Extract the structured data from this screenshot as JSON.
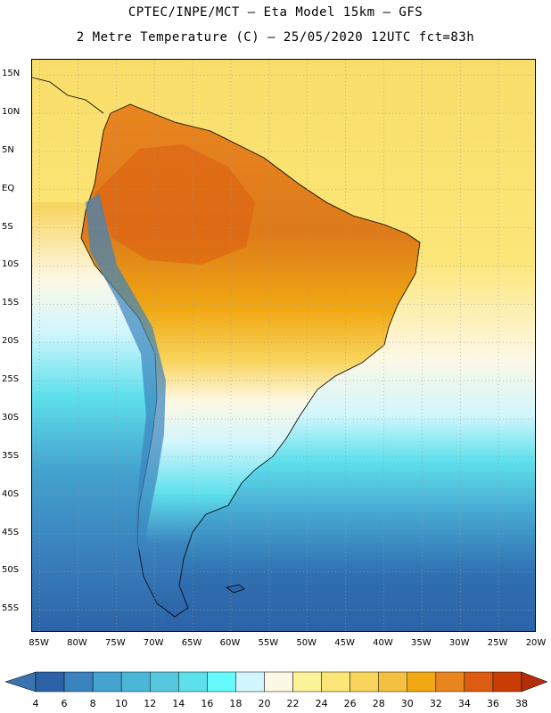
{
  "title": {
    "line1": "CPTEC/INPE/MCT –  Eta Model 15km – GFS",
    "line2": "2 Metre Temperature (C) – 25/05/2020 12UTC fct=83h"
  },
  "map": {
    "variable": "2 Metre Temperature",
    "units": "C",
    "lat_range": [
      "58S",
      "17N"
    ],
    "lon_range": [
      "86W",
      "20W"
    ],
    "lat_labels": [
      "15N",
      "10N",
      "5N",
      "EQ",
      "5S",
      "10S",
      "15S",
      "20S",
      "25S",
      "30S",
      "35S",
      "40S",
      "45S",
      "50S",
      "55S"
    ],
    "lon_labels": [
      "85W",
      "80W",
      "75W",
      "70W",
      "65W",
      "60W",
      "55W",
      "50W",
      "45W",
      "40W",
      "35W",
      "30W",
      "25W",
      "20W"
    ]
  },
  "colorbar": {
    "labels": [
      "4",
      "6",
      "8",
      "10",
      "12",
      "14",
      "16",
      "18",
      "20",
      "22",
      "24",
      "26",
      "28",
      "30",
      "32",
      "34",
      "36",
      "38"
    ],
    "colors": [
      "#3a72b0",
      "#2c63a8",
      "#3a83be",
      "#44a3cf",
      "#4ab7d9",
      "#55c8e0",
      "#5ee0ec",
      "#66fafd",
      "#d2f6fd",
      "#fdf8e5",
      "#fcf29a",
      "#fce678",
      "#f8d45c",
      "#f3c040",
      "#f1a813",
      "#e9851f",
      "#dd5d10",
      "#c83e05",
      "#b22d0a"
    ]
  }
}
